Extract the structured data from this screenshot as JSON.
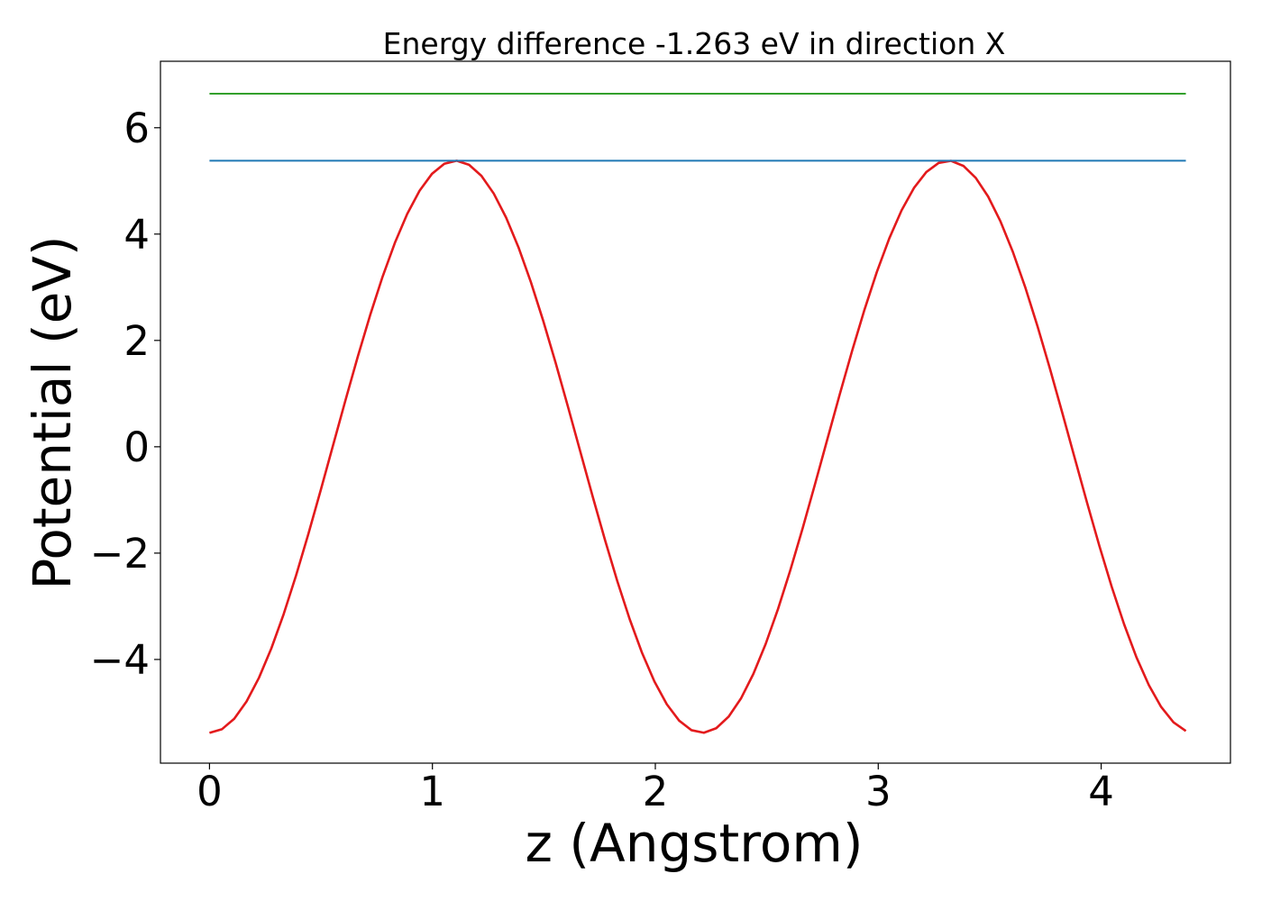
{
  "chart_data": {
    "type": "line",
    "title": "Energy difference -1.263 eV in direction X",
    "xlabel": "z (Angstrom)",
    "ylabel": "Potential (eV)",
    "xlim": [
      -0.22,
      4.58
    ],
    "ylim": [
      -5.95,
      7.25
    ],
    "xticks": [
      0,
      1,
      2,
      3,
      4
    ],
    "xtick_labels": [
      "0",
      "1",
      "2",
      "3",
      "4"
    ],
    "yticks": [
      -4,
      -2,
      0,
      2,
      4,
      6
    ],
    "ytick_labels": [
      "−4",
      "−2",
      "0",
      "2",
      "4",
      "6"
    ],
    "grid": false,
    "legend": "none",
    "series": [
      {
        "kind": "cosine",
        "color": "#e31a1c",
        "x_start": 0,
        "x_end": 4.38,
        "points": 80,
        "center": 0,
        "amplitude": 5.38,
        "period": 2.21,
        "min_at_x": 0
      },
      {
        "kind": "hline",
        "color": "#1f78b4",
        "y": 5.38,
        "x_start": 0,
        "x_end": 4.38
      },
      {
        "kind": "hline",
        "color": "#33a02c",
        "y": 6.64,
        "x_start": 0,
        "x_end": 4.38
      }
    ]
  }
}
